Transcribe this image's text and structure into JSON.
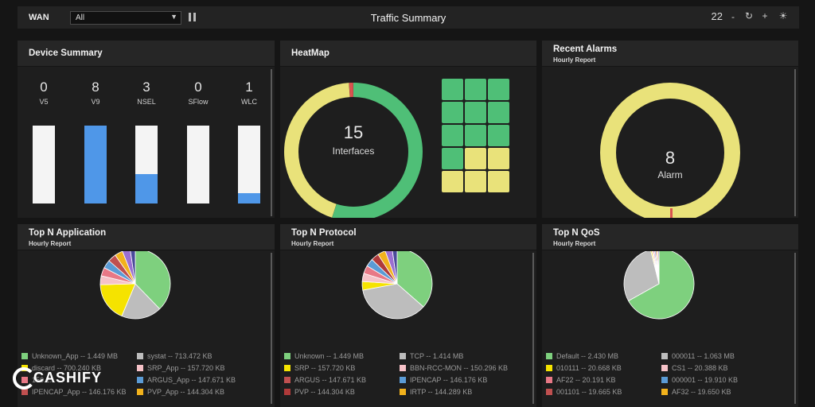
{
  "toolbar": {
    "wan_label": "WAN",
    "wan_value": "All",
    "title": "Traffic Summary",
    "count": "22",
    "minus": "-",
    "refresh": "↻",
    "plus": "+",
    "brightness": "☀"
  },
  "device_summary": {
    "title": "Device Summary",
    "devices": [
      {
        "count": "0",
        "label": "V5",
        "fill": 0
      },
      {
        "count": "8",
        "label": "V9",
        "fill": 1.0
      },
      {
        "count": "3",
        "label": "NSEL",
        "fill": 0.38
      },
      {
        "count": "0",
        "label": "SFlow",
        "fill": 0
      },
      {
        "count": "1",
        "label": "WLC",
        "fill": 0.13
      }
    ]
  },
  "heatmap": {
    "title": "HeatMap",
    "interfaces_count": "15",
    "interfaces_label": "Interfaces",
    "grid": [
      [
        "green",
        "green",
        "green"
      ],
      [
        "green",
        "green",
        "green"
      ],
      [
        "green",
        "green",
        "green"
      ],
      [
        "green",
        "yellow",
        "yellow"
      ],
      [
        "yellow",
        "yellow",
        "yellow"
      ]
    ],
    "donut": {
      "green": 0.55,
      "red": 0.01,
      "yellow": 0.44
    }
  },
  "recent_alarms": {
    "title": "Recent Alarms",
    "subtitle": "Hourly Report",
    "count": "8",
    "label": "Alarm"
  },
  "top_app": {
    "title": "Top N Application",
    "subtitle": "Hourly Report",
    "legend": [
      {
        "label": "Unknown_App -- 1.449 MB",
        "color": "#7ed07e"
      },
      {
        "label": "systat -- 713.472 KB",
        "color": "#bdbdbd"
      },
      {
        "label": "discard -- 700.240 KB",
        "color": "#f5e300"
      },
      {
        "label": "SRP_App -- 157.720 KB",
        "color": "#f6c2c8"
      },
      {
        "label": "150.2...",
        "color": "#e87886"
      },
      {
        "label": "ARGUS_App -- 147.671 KB",
        "color": "#5b9bd5"
      },
      {
        "label": "IPENCAP_App -- 146.176 KB",
        "color": "#c05050"
      },
      {
        "label": "PVP_App -- 144.304 KB",
        "color": "#f2b21c"
      }
    ],
    "pie": [
      {
        "value": 1449,
        "color": "#7ed07e"
      },
      {
        "value": 713,
        "color": "#bdbdbd"
      },
      {
        "value": 700,
        "color": "#f5e300"
      },
      {
        "value": 158,
        "color": "#f6c2c8"
      },
      {
        "value": 150,
        "color": "#e87886"
      },
      {
        "value": 148,
        "color": "#5b9bd5"
      },
      {
        "value": 146,
        "color": "#c05050"
      },
      {
        "value": 144,
        "color": "#f2b21c"
      },
      {
        "value": 140,
        "color": "#9b6fd1"
      },
      {
        "value": 90,
        "color": "#4a4a9a"
      }
    ]
  },
  "top_protocol": {
    "title": "Top N Protocol",
    "subtitle": "Hourly Report",
    "legend": [
      {
        "label": "Unknown -- 1.449 MB",
        "color": "#7ed07e"
      },
      {
        "label": "TCP -- 1.414 MB",
        "color": "#bdbdbd"
      },
      {
        "label": "SRP -- 157.720 KB",
        "color": "#f5e300"
      },
      {
        "label": "BBN-RCC-MON -- 150.296 KB",
        "color": "#f6c2c8"
      },
      {
        "label": "ARGUS -- 147.671 KB",
        "color": "#c05050"
      },
      {
        "label": "IPENCAP -- 146.176 KB",
        "color": "#5b9bd5"
      },
      {
        "label": "PVP -- 144.304 KB",
        "color": "#b03a3a"
      },
      {
        "label": "IRTP -- 144.289 KB",
        "color": "#f2b21c"
      }
    ],
    "pie": [
      {
        "value": 1449,
        "color": "#7ed07e"
      },
      {
        "value": 1414,
        "color": "#bdbdbd"
      },
      {
        "value": 158,
        "color": "#f5e300"
      },
      {
        "value": 150,
        "color": "#f6c2c8"
      },
      {
        "value": 148,
        "color": "#e87886"
      },
      {
        "value": 146,
        "color": "#5b9bd5"
      },
      {
        "value": 144,
        "color": "#b03a3a"
      },
      {
        "value": 144,
        "color": "#f2b21c"
      },
      {
        "value": 130,
        "color": "#9b6fd1"
      },
      {
        "value": 90,
        "color": "#4a4a9a"
      }
    ]
  },
  "top_qos": {
    "title": "Top N QoS",
    "subtitle": "Hourly Report",
    "legend": [
      {
        "label": "Default -- 2.430 MB",
        "color": "#7ed07e"
      },
      {
        "label": "000011 -- 1.063 MB",
        "color": "#bdbdbd"
      },
      {
        "label": "010111 -- 20.668 KB",
        "color": "#f5e300"
      },
      {
        "label": "CS1 -- 20.388 KB",
        "color": "#f6c2c8"
      },
      {
        "label": "AF22 -- 20.191 KB",
        "color": "#e87886"
      },
      {
        "label": "000001 -- 19.910 KB",
        "color": "#5b9bd5"
      },
      {
        "label": "001101 -- 19.665 KB",
        "color": "#c05050"
      },
      {
        "label": "AF32 -- 19.650 KB",
        "color": "#f2b21c"
      }
    ],
    "pie": [
      {
        "value": 2430,
        "color": "#7ed07e"
      },
      {
        "value": 1063,
        "color": "#bdbdbd"
      },
      {
        "value": 21,
        "color": "#f5e300"
      },
      {
        "value": 20,
        "color": "#f6c2c8"
      },
      {
        "value": 20,
        "color": "#e87886"
      },
      {
        "value": 20,
        "color": "#5b9bd5"
      },
      {
        "value": 20,
        "color": "#c05050"
      },
      {
        "value": 20,
        "color": "#f2b21c"
      },
      {
        "value": 20,
        "color": "#9b6fd1"
      }
    ]
  },
  "watermark": {
    "text": "CASHIFY"
  },
  "colors": {
    "green": "#4fbf77",
    "yellow": "#e9e27a",
    "red": "#d9534f",
    "blue": "#4f97e8"
  }
}
